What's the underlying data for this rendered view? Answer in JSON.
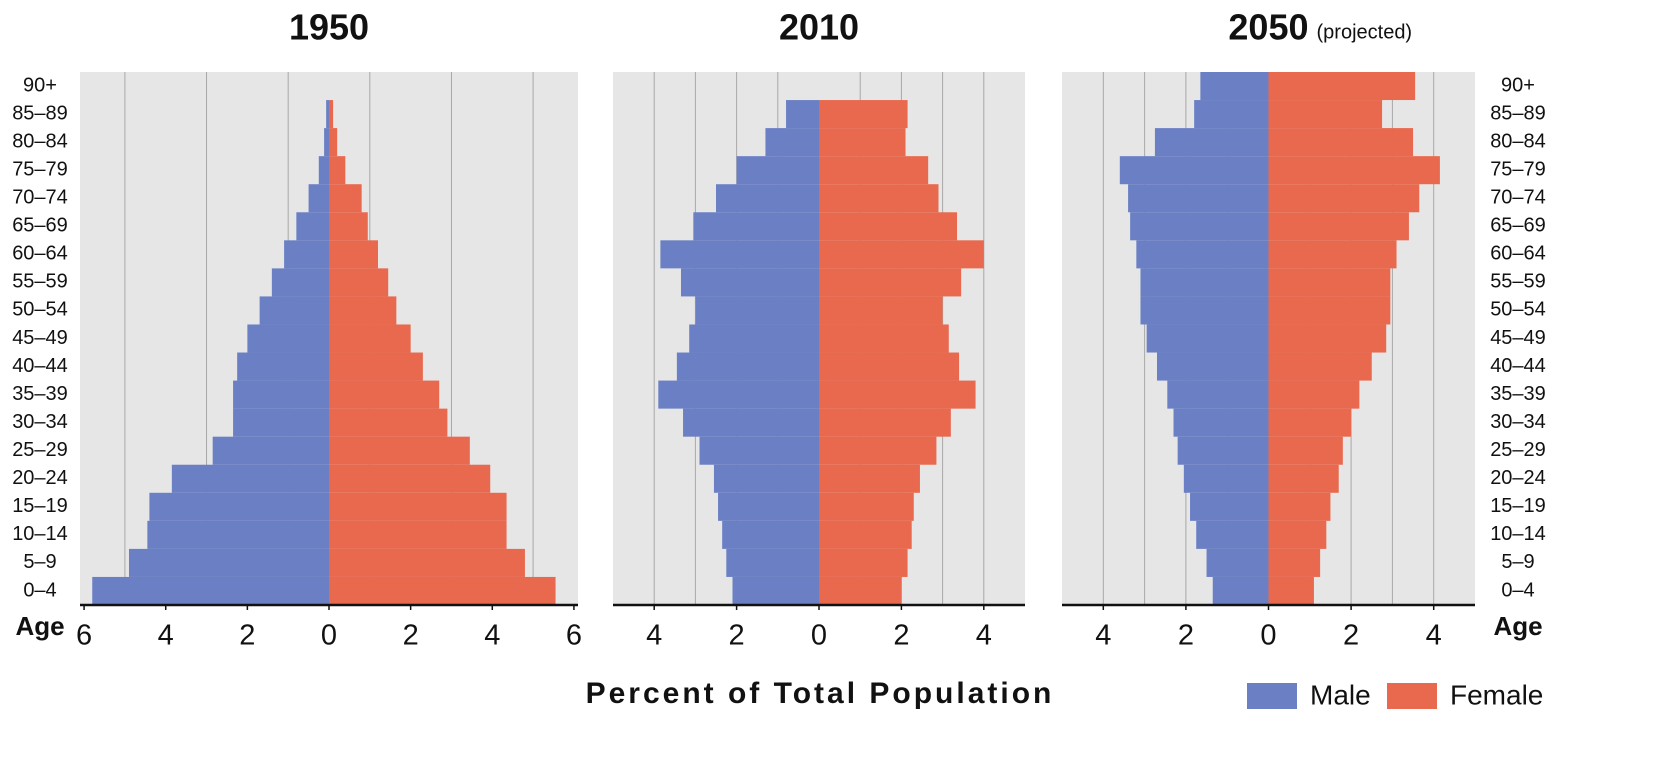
{
  "chart_data": {
    "type": "pyramid",
    "xlabel": "Percent of Total Population",
    "ylabel": "Age",
    "categories": [
      "0–4",
      "5–9",
      "10–14",
      "15–19",
      "20–24",
      "25–29",
      "30–34",
      "35–39",
      "40–44",
      "45–49",
      "50–54",
      "55–59",
      "60–64",
      "65–69",
      "70–74",
      "75–79",
      "80–84",
      "85–89",
      "90+"
    ],
    "series": [
      {
        "name": "Male",
        "color": "#6b80c4"
      },
      {
        "name": "Female",
        "color": "#e8694e"
      }
    ],
    "panels": [
      {
        "title": "1950",
        "xlim": [
          -6.1,
          6.1
        ],
        "xticks": [
          {
            "value": -6,
            "label": "6"
          },
          {
            "value": -4,
            "label": "4"
          },
          {
            "value": -2,
            "label": "2"
          },
          0,
          2,
          4,
          6
        ],
        "xgrid": [
          -5,
          -3,
          -1,
          1,
          3,
          5
        ],
        "series": [
          {
            "values": [
              -5.8,
              -4.9,
              -4.45,
              -4.4,
              -3.85,
              -2.85,
              -2.35,
              -2.35,
              -2.25,
              -2.0,
              -1.7,
              -1.4,
              -1.1,
              -0.8,
              -0.5,
              -0.25,
              -0.12,
              -0.07,
              0
            ]
          },
          {
            "values": [
              5.55,
              4.8,
              4.35,
              4.35,
              3.95,
              3.45,
              2.9,
              2.7,
              2.3,
              2.0,
              1.65,
              1.45,
              1.2,
              0.95,
              0.8,
              0.4,
              0.2,
              0.1,
              0
            ]
          }
        ]
      },
      {
        "title": "2010",
        "xlim": [
          -5,
          5
        ],
        "xticks": [
          {
            "value": -4,
            "label": "4"
          },
          {
            "value": -2,
            "label": "2"
          },
          0,
          2,
          4
        ],
        "xgrid": [
          -4,
          -3,
          -2,
          -1,
          1,
          2,
          3,
          4
        ],
        "series": [
          {
            "values": [
              -2.1,
              -2.25,
              -2.35,
              -2.45,
              -2.55,
              -2.9,
              -3.3,
              -3.9,
              -3.45,
              -3.15,
              -3.0,
              -3.35,
              -3.85,
              -3.05,
              -2.5,
              -2.0,
              -1.3,
              -0.8,
              0
            ]
          },
          {
            "values": [
              2.0,
              2.15,
              2.25,
              2.3,
              2.45,
              2.85,
              3.2,
              3.8,
              3.4,
              3.15,
              3.0,
              3.45,
              4.0,
              3.35,
              2.9,
              2.65,
              2.1,
              2.15,
              0
            ]
          }
        ]
      },
      {
        "title": "2050",
        "subtitle": "(projected)",
        "xlim": [
          -5,
          5
        ],
        "xticks": [
          {
            "value": -4,
            "label": "4"
          },
          {
            "value": -2,
            "label": "2"
          },
          0,
          2,
          4
        ],
        "xgrid": [
          -4,
          -3,
          -2,
          -1,
          1,
          2,
          3,
          4
        ],
        "series": [
          {
            "values": [
              -1.35,
              -1.5,
              -1.75,
              -1.9,
              -2.05,
              -2.2,
              -2.3,
              -2.45,
              -2.7,
              -2.95,
              -3.1,
              -3.1,
              -3.2,
              -3.35,
              -3.4,
              -3.6,
              -2.75,
              -1.8,
              -1.65
            ]
          },
          {
            "values": [
              1.1,
              1.25,
              1.4,
              1.5,
              1.7,
              1.8,
              2.0,
              2.2,
              2.5,
              2.85,
              2.95,
              2.95,
              3.1,
              3.4,
              3.65,
              4.15,
              3.5,
              2.75,
              3.55
            ]
          }
        ]
      }
    ]
  }
}
